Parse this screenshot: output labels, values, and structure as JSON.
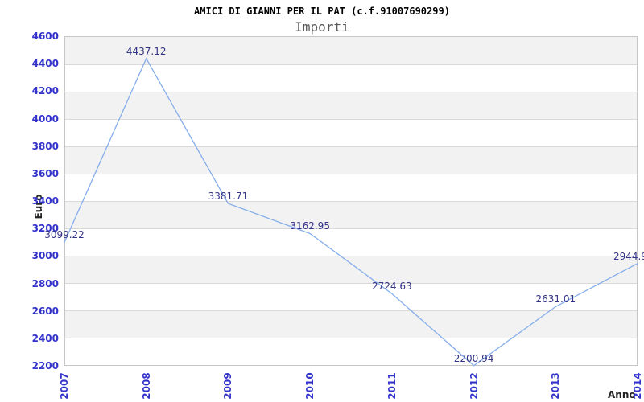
{
  "chart_data": {
    "type": "line",
    "title": "AMICI DI GIANNI PER IL PAT (c.f.91007690299)",
    "subtitle": "Importi",
    "xlabel": "Anno",
    "ylabel": "Euro",
    "categories": [
      "2007",
      "2008",
      "2009",
      "2010",
      "2011",
      "2012",
      "2013",
      "2014"
    ],
    "series": [
      {
        "name": "Importi",
        "values": [
          3099.22,
          4437.12,
          3381.71,
          3162.95,
          2724.63,
          2200.94,
          2631.01,
          2944.9
        ],
        "point_labels": [
          "3099.22",
          "4437.12",
          "3381.71",
          "3162.95",
          "2724.63",
          "2200.94",
          "2631.01",
          "2944.9"
        ]
      }
    ],
    "ylim": [
      2200,
      4600
    ],
    "ytick_step": 200,
    "ytick_labels": [
      "4600",
      "4400",
      "4200",
      "4000",
      "3800",
      "3600",
      "3400",
      "3200",
      "3000",
      "2800",
      "2600",
      "2400",
      "2200"
    ],
    "grid": "horizontal",
    "plot_bands": "alternating gray/white between ticks, gray topmost",
    "legend_position": "none",
    "colors": {
      "background": "#ffffff",
      "line": "#86aeea",
      "axis_tick_label": "#3333cc",
      "point_label": "#333388",
      "band_fill": "#f2f2f2",
      "gridline": "#d9d9d9",
      "plot_border": "#c6c6c6",
      "title": "#000000",
      "subtitle": "#595959",
      "axis_title": "#222222"
    }
  }
}
